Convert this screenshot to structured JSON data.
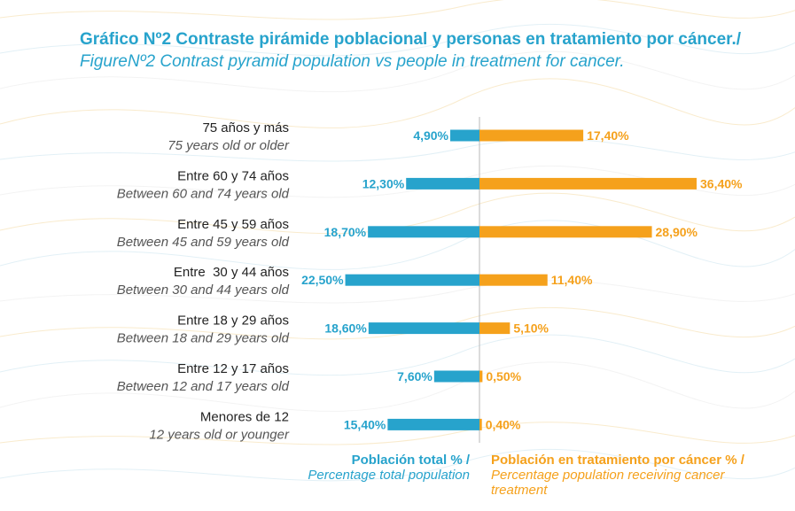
{
  "title": {
    "spanish": "Gráfico Nº2 Contraste pirámide poblacional y personas en tratamiento por cáncer./",
    "english": " FigureNº2 Contrast pyramid population vs people in treatment for cancer."
  },
  "colors": {
    "left_series": "#27a3cc",
    "right_series": "#f5a11c",
    "axis": "#b8b8b8",
    "label_text": "#222222",
    "label_sub": "#555555"
  },
  "legend": {
    "left_bold": "Población total % /",
    "left_italic": "Percentage total population",
    "right_bold": "Población en tratamiento por cáncer % /",
    "right_italic": "Percentage population receiving cancer treatment"
  },
  "chart_data": {
    "type": "bar",
    "orientation": "horizontal-diverging",
    "categories": [
      {
        "spanish": "75 años y más",
        "english": "75 years old or older"
      },
      {
        "spanish": "Entre 60 y 74 años",
        "english": "Between 60 and 74 years old"
      },
      {
        "spanish": "Entre 45 y 59 años",
        "english": "Between 45 and 59 years old"
      },
      {
        "spanish": "Entre  30 y 44 años",
        "english": "Between 30 and 44 years old"
      },
      {
        "spanish": "Entre 18 y 29 años",
        "english": "Between 18 and 29 years old"
      },
      {
        "spanish": "Entre 12 y 17 años",
        "english": "Between 12 and 17 years old"
      },
      {
        "spanish": "Menores de 12",
        "english": "12 years old or younger"
      }
    ],
    "series": [
      {
        "side": "left",
        "values": [
          4.9,
          12.3,
          18.7,
          22.5,
          18.6,
          7.6,
          15.4
        ],
        "labels": [
          "4,90%",
          "12,30%",
          "18,70%",
          "22,50%",
          "18,60%",
          "7,60%",
          "15,40%"
        ]
      },
      {
        "side": "right",
        "values": [
          17.4,
          36.4,
          28.9,
          11.4,
          5.1,
          0.5,
          0.4
        ],
        "labels": [
          "17,40%",
          "36,40%",
          "28,90%",
          "11,40%",
          "5,10%",
          "0,50%",
          "0,40%"
        ]
      }
    ]
  }
}
